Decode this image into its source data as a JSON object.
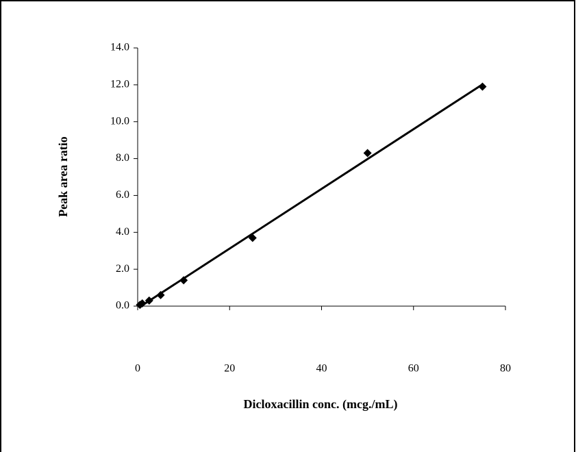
{
  "chart_data": {
    "type": "scatter",
    "x_label": "Dicloxacillin conc. (mcg./mL)",
    "y_label": "Peak area ratio",
    "x": [
      0.5,
      1,
      2.5,
      5,
      10,
      25,
      50,
      75
    ],
    "values": [
      0.07,
      0.15,
      0.3,
      0.6,
      1.4,
      3.7,
      8.3,
      11.9
    ],
    "color": "#000000",
    "trendline": true,
    "xlim": [
      0,
      80
    ],
    "xticks": [
      0,
      20,
      40,
      60,
      80
    ],
    "ylim": [
      0,
      14
    ],
    "yticks": [
      {
        "value": 0,
        "label": "0.0"
      },
      {
        "value": 2,
        "label": "2.0"
      },
      {
        "value": 4,
        "label": "4.0"
      },
      {
        "value": 6,
        "label": "6.0"
      },
      {
        "value": 8,
        "label": "8.0"
      },
      {
        "value": 10,
        "label": "10.0"
      },
      {
        "value": 12,
        "label": "12.0"
      },
      {
        "value": 14,
        "label": "14.0"
      }
    ]
  }
}
